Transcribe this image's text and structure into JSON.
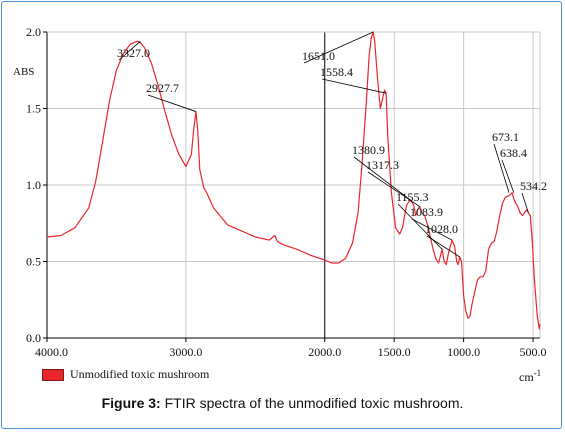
{
  "chart_data": {
    "type": "line",
    "ylabel": "ABS",
    "xunit": "cm",
    "xunit_exp": "-1",
    "xlim": [
      4000,
      450
    ],
    "ylim": [
      0,
      2.0
    ],
    "xticks": [
      "4000.0",
      "3000.0",
      "2000.0",
      "1500.0",
      "1000.0",
      "500.0"
    ],
    "xtick_values": [
      4000,
      3000,
      2000,
      1500,
      1000,
      500
    ],
    "yticks": [
      "0.0",
      "0.5",
      "1.0",
      "1.5",
      "2.0"
    ],
    "ytick_values": [
      0,
      0.5,
      1.0,
      1.5,
      2.0
    ],
    "grid": true,
    "legend_position": "bottom-left",
    "line_color": "#e8262a",
    "series": [
      {
        "name": "Unmodified toxic mushroom",
        "x": [
          4000,
          3900,
          3800,
          3700,
          3650,
          3600,
          3550,
          3500,
          3450,
          3400,
          3350,
          3327,
          3300,
          3250,
          3200,
          3150,
          3100,
          3050,
          3000,
          2960,
          2945,
          2927.7,
          2915,
          2900,
          2870,
          2850,
          2800,
          2700,
          2600,
          2500,
          2400,
          2360,
          2340,
          2300,
          2200,
          2100,
          2000,
          1950,
          1900,
          1850,
          1800,
          1760,
          1730,
          1700,
          1680,
          1665,
          1651,
          1640,
          1620,
          1600,
          1580,
          1570,
          1558.4,
          1545,
          1520,
          1490,
          1460,
          1440,
          1425,
          1410,
          1395,
          1380.9,
          1360,
          1345,
          1330,
          1317.3,
          1300,
          1280,
          1260,
          1240,
          1220,
          1200,
          1180,
          1155.3,
          1140,
          1125,
          1110,
          1083.9,
          1065,
          1050,
          1040,
          1028,
          1015,
          1000,
          985,
          970,
          955,
          940,
          920,
          900,
          880,
          860,
          840,
          820,
          800,
          780,
          760,
          740,
          720,
          700,
          673.1,
          660,
          650,
          638.4,
          625,
          610,
          595,
          575,
          560,
          545,
          534.2,
          520,
          505,
          490,
          470,
          455,
          450
        ],
        "y": [
          0.66,
          0.67,
          0.72,
          0.85,
          1.02,
          1.28,
          1.55,
          1.75,
          1.86,
          1.92,
          1.94,
          1.93,
          1.9,
          1.8,
          1.65,
          1.48,
          1.32,
          1.2,
          1.12,
          1.2,
          1.35,
          1.48,
          1.36,
          1.1,
          0.98,
          0.95,
          0.85,
          0.74,
          0.7,
          0.66,
          0.64,
          0.67,
          0.63,
          0.61,
          0.58,
          0.54,
          0.51,
          0.49,
          0.49,
          0.52,
          0.62,
          0.82,
          1.15,
          1.55,
          1.85,
          1.96,
          2.0,
          1.94,
          1.7,
          1.5,
          1.58,
          1.62,
          1.6,
          1.3,
          0.95,
          0.72,
          0.68,
          0.72,
          0.8,
          0.87,
          0.89,
          0.9,
          0.87,
          0.8,
          0.84,
          0.86,
          0.82,
          0.8,
          0.74,
          0.66,
          0.58,
          0.52,
          0.49,
          0.58,
          0.5,
          0.48,
          0.55,
          0.64,
          0.6,
          0.5,
          0.48,
          0.53,
          0.5,
          0.28,
          0.18,
          0.13,
          0.14,
          0.22,
          0.3,
          0.38,
          0.4,
          0.4,
          0.44,
          0.58,
          0.62,
          0.63,
          0.7,
          0.8,
          0.88,
          0.92,
          0.93,
          0.94,
          0.95,
          0.91,
          0.88,
          0.86,
          0.82,
          0.8,
          0.82,
          0.84,
          0.82,
          0.8,
          0.62,
          0.38,
          0.15,
          0.06,
          0.09
        ]
      }
    ],
    "annotations": [
      {
        "label": "3327.0",
        "x": 3327,
        "y": 1.94
      },
      {
        "label": "2927.7",
        "x": 2927.7,
        "y": 1.48
      },
      {
        "label": "1651.0",
        "x": 1651,
        "y": 2.0
      },
      {
        "label": "1558.4",
        "x": 1558.4,
        "y": 1.6
      },
      {
        "label": "1380.9",
        "x": 1380.9,
        "y": 0.9
      },
      {
        "label": "1317.3",
        "x": 1317.3,
        "y": 0.86
      },
      {
        "label": "1155.3",
        "x": 1155.3,
        "y": 0.58
      },
      {
        "label": "1083.9",
        "x": 1083.9,
        "y": 0.64
      },
      {
        "label": "1028.0",
        "x": 1028,
        "y": 0.53
      },
      {
        "label": "673.1",
        "x": 673.1,
        "y": 0.95
      },
      {
        "label": "638.4",
        "x": 638.4,
        "y": 0.95
      },
      {
        "label": "534.2",
        "x": 534.2,
        "y": 0.82
      }
    ]
  },
  "legend": {
    "label": "Unmodified toxic mushroom",
    "color": "#e8262a"
  },
  "caption": {
    "prefix": "Figure 3:",
    "text": " FTIR spectra of the unmodified toxic mushroom."
  }
}
